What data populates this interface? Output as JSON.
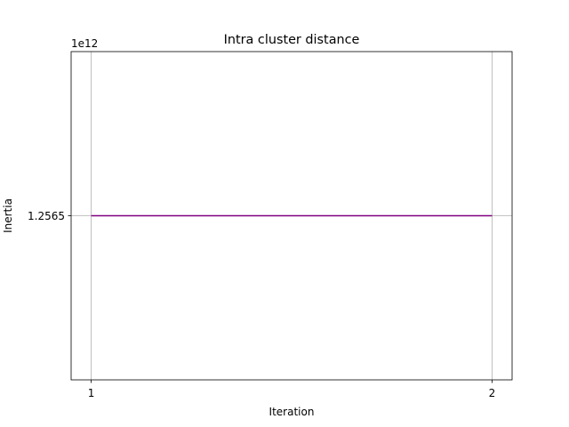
{
  "chart_data": {
    "type": "line",
    "title": "Intra cluster distance",
    "xlabel": "Iteration",
    "ylabel": "Inertia",
    "y_offset_text": "1e12",
    "x": [
      1,
      2
    ],
    "series": [
      {
        "values": [
          1.2565,
          1.2565
        ]
      }
    ],
    "xlim": [
      0.95,
      2.05
    ],
    "ylim": [
      1.2564,
      1.2566
    ],
    "x_ticks": [
      {
        "value": 1,
        "label": "1"
      },
      {
        "value": 2,
        "label": "2"
      }
    ],
    "y_ticks": [
      {
        "value": 1.2565,
        "label": "1.2565"
      }
    ],
    "grid": true,
    "colors": {
      "line": "#800080",
      "grid": "#b0b0b0",
      "axes": "#000000"
    }
  }
}
